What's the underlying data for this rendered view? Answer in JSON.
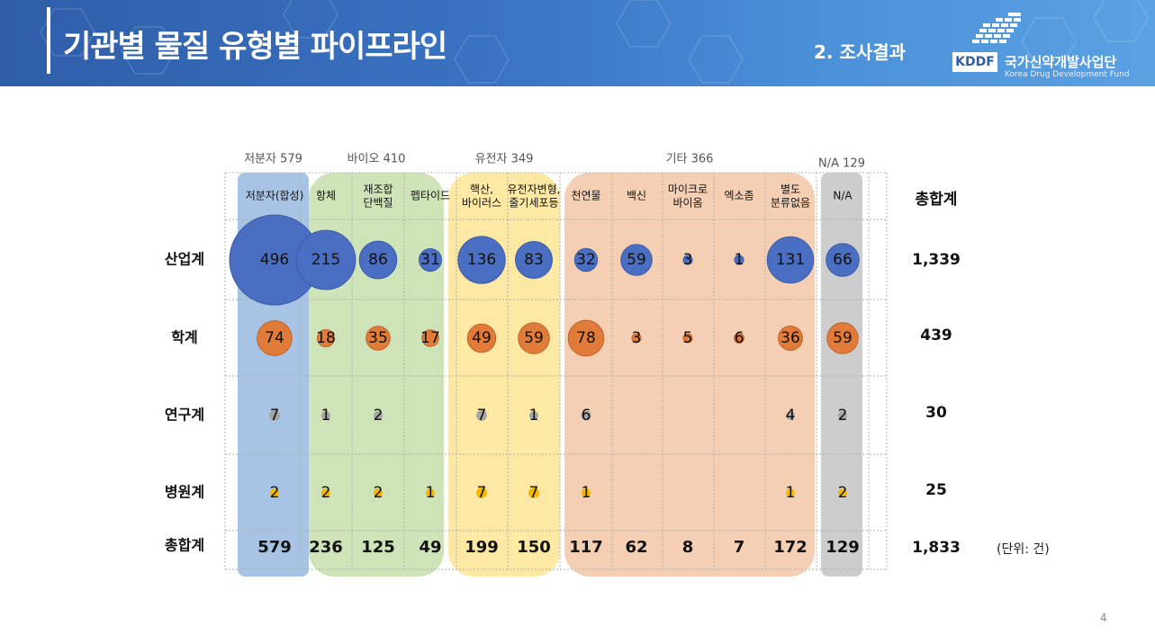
{
  "header": {
    "title": "기관별 물질 유형별 파이프라인",
    "section": "2. 조사결과",
    "logo_text": "KDDF",
    "org_name_kr": "국가신약개발사업단",
    "org_name_en": "Korea Drug Development Fund"
  },
  "page_number": "4",
  "unit_label": "(단위: 건)",
  "chart_data": {
    "type": "bubble-table",
    "groups": [
      {
        "label": "저분자 579",
        "color": "#a8c4e4",
        "first": 0,
        "last": 0
      },
      {
        "label": "바이오 410",
        "color": "#cfe3b8",
        "first": 1,
        "last": 3
      },
      {
        "label": "유전자 349",
        "color": "#fde9a3",
        "first": 4,
        "last": 5
      },
      {
        "label": "기타 366",
        "color": "#f4cfb4",
        "first": 6,
        "last": 10
      },
      {
        "label": "N/A 129",
        "color": "#cdcdcd",
        "first": 11,
        "last": 11
      }
    ],
    "columns": [
      "저분자(합성)",
      "항체",
      "재조합\n단백질",
      "펩타이드",
      "핵산,\n바이러스",
      "유전자변형,\n줄기세포등",
      "천연물",
      "백신",
      "마이크로\n바이옴",
      "엑소좀",
      "별도\n분류없음",
      "N/A"
    ],
    "rows": [
      "산업계",
      "학계",
      "연구계",
      "병원계"
    ],
    "row_colors": [
      "#4a6fc2",
      "#e07b39",
      "#a5a5a5",
      "#f5b800"
    ],
    "values": [
      [
        496,
        215,
        86,
        31,
        136,
        83,
        32,
        59,
        3,
        1,
        131,
        66
      ],
      [
        74,
        18,
        35,
        17,
        49,
        59,
        78,
        3,
        5,
        6,
        36,
        59
      ],
      [
        7,
        1,
        2,
        null,
        7,
        1,
        6,
        null,
        null,
        null,
        4,
        2
      ],
      [
        2,
        2,
        2,
        1,
        7,
        7,
        1,
        null,
        null,
        null,
        1,
        2
      ]
    ],
    "row_totals_label": "총합계",
    "row_totals": [
      "1,339",
      "439",
      "30",
      "25"
    ],
    "column_totals_label": "총합계",
    "column_totals": [
      "579",
      "236",
      "125",
      "49",
      "199",
      "150",
      "117",
      "62",
      "8",
      "7",
      "172",
      "129"
    ],
    "grand_total": "1,833"
  }
}
